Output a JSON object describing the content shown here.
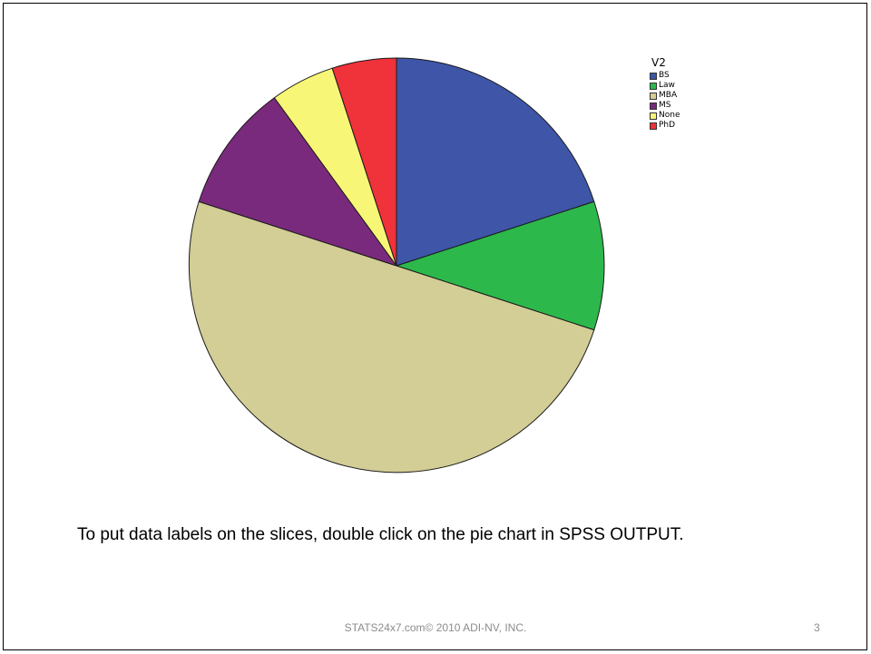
{
  "chart_data": {
    "type": "pie",
    "legend_title": "V2",
    "legend_position": "top-right",
    "start_angle_deg": 0,
    "direction": "clockwise",
    "slices": [
      {
        "label": "BS",
        "value": 20,
        "color": "#3e55a8"
      },
      {
        "label": "Law",
        "value": 10,
        "color": "#2db84c"
      },
      {
        "label": "MBA",
        "value": 50,
        "color": "#d3cd96"
      },
      {
        "label": "MS",
        "value": 10,
        "color": "#7a2a7c"
      },
      {
        "label": "None",
        "value": 5,
        "color": "#f8f676"
      },
      {
        "label": "PhD",
        "value": 5,
        "color": "#f0323a"
      }
    ]
  },
  "caption": "To put data labels on the slices, double click on the pie chart in SPSS OUTPUT.",
  "footer": "STATS24x7.com© 2010 ADI-NV, INC.",
  "page_number": "3"
}
